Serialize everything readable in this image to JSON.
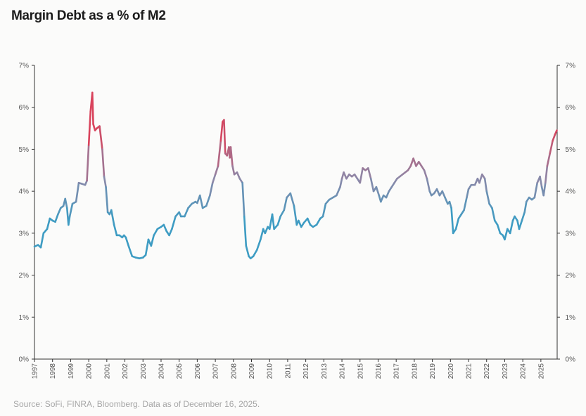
{
  "title": "Margin Debt as a % of M2",
  "source": "Source: SoFi, FINRA, Bloomberg. Data as of December 16, 2025.",
  "colors": {
    "low": "#3e9cc3",
    "mid": "#8c88a8",
    "high": "#d9435c",
    "axis": "#333333"
  },
  "chart_data": {
    "type": "line",
    "title": "Margin Debt as a % of M2",
    "xlabel": "",
    "ylabel": "",
    "xlim": [
      1997.0,
      2025.9
    ],
    "ylim": [
      0,
      7
    ],
    "y_ticks": [
      "0%",
      "1%",
      "2%",
      "3%",
      "4%",
      "5%",
      "6%",
      "7%"
    ],
    "x_ticks": [
      "1997",
      "1998",
      "1999",
      "2000",
      "2001",
      "2002",
      "2003",
      "2004",
      "2005",
      "2006",
      "2007",
      "2008",
      "2009",
      "2010",
      "2011",
      "2012",
      "2013",
      "2014",
      "2015",
      "2016",
      "2017",
      "2018",
      "2019",
      "2020",
      "2021",
      "2022",
      "2023",
      "2024",
      "2025"
    ],
    "grid": false,
    "legend": "none",
    "color_encoding": "line color shifts from blue (low) to red (high) with value",
    "series": [
      {
        "points": [
          [
            1997.0,
            2.68
          ],
          [
            1997.2,
            2.72
          ],
          [
            1997.35,
            2.66
          ],
          [
            1997.5,
            3.0
          ],
          [
            1997.7,
            3.1
          ],
          [
            1997.85,
            3.35
          ],
          [
            1998.0,
            3.3
          ],
          [
            1998.15,
            3.27
          ],
          [
            1998.3,
            3.45
          ],
          [
            1998.45,
            3.6
          ],
          [
            1998.6,
            3.65
          ],
          [
            1998.7,
            3.82
          ],
          [
            1998.8,
            3.6
          ],
          [
            1998.88,
            3.2
          ],
          [
            1998.95,
            3.4
          ],
          [
            1999.1,
            3.7
          ],
          [
            1999.3,
            3.75
          ],
          [
            1999.45,
            4.2
          ],
          [
            1999.6,
            4.18
          ],
          [
            1999.8,
            4.15
          ],
          [
            1999.9,
            4.25
          ],
          [
            2000.0,
            5.1
          ],
          [
            2000.1,
            5.9
          ],
          [
            2000.2,
            6.35
          ],
          [
            2000.25,
            5.6
          ],
          [
            2000.35,
            5.45
          ],
          [
            2000.45,
            5.5
          ],
          [
            2000.6,
            5.55
          ],
          [
            2000.75,
            5.0
          ],
          [
            2000.85,
            4.35
          ],
          [
            2000.95,
            4.1
          ],
          [
            2001.05,
            3.5
          ],
          [
            2001.15,
            3.45
          ],
          [
            2001.25,
            3.55
          ],
          [
            2001.4,
            3.2
          ],
          [
            2001.55,
            2.95
          ],
          [
            2001.7,
            2.95
          ],
          [
            2001.85,
            2.9
          ],
          [
            2001.95,
            2.95
          ],
          [
            2002.05,
            2.9
          ],
          [
            2002.2,
            2.7
          ],
          [
            2002.4,
            2.45
          ],
          [
            2002.6,
            2.42
          ],
          [
            2002.8,
            2.4
          ],
          [
            2003.0,
            2.42
          ],
          [
            2003.15,
            2.48
          ],
          [
            2003.3,
            2.85
          ],
          [
            2003.45,
            2.7
          ],
          [
            2003.6,
            2.95
          ],
          [
            2003.8,
            3.1
          ],
          [
            2004.0,
            3.15
          ],
          [
            2004.15,
            3.2
          ],
          [
            2004.3,
            3.05
          ],
          [
            2004.45,
            2.95
          ],
          [
            2004.6,
            3.1
          ],
          [
            2004.8,
            3.4
          ],
          [
            2005.0,
            3.5
          ],
          [
            2005.1,
            3.4
          ],
          [
            2005.3,
            3.4
          ],
          [
            2005.5,
            3.6
          ],
          [
            2005.7,
            3.7
          ],
          [
            2005.9,
            3.75
          ],
          [
            2006.0,
            3.72
          ],
          [
            2006.15,
            3.9
          ],
          [
            2006.3,
            3.6
          ],
          [
            2006.5,
            3.65
          ],
          [
            2006.7,
            3.9
          ],
          [
            2006.85,
            4.2
          ],
          [
            2007.0,
            4.4
          ],
          [
            2007.15,
            4.6
          ],
          [
            2007.3,
            5.2
          ],
          [
            2007.4,
            5.65
          ],
          [
            2007.48,
            5.7
          ],
          [
            2007.55,
            4.9
          ],
          [
            2007.65,
            4.85
          ],
          [
            2007.75,
            5.05
          ],
          [
            2007.8,
            4.8
          ],
          [
            2007.85,
            5.05
          ],
          [
            2007.95,
            4.6
          ],
          [
            2008.05,
            4.4
          ],
          [
            2008.2,
            4.45
          ],
          [
            2008.35,
            4.3
          ],
          [
            2008.5,
            4.2
          ],
          [
            2008.6,
            3.4
          ],
          [
            2008.7,
            2.7
          ],
          [
            2008.85,
            2.45
          ],
          [
            2008.95,
            2.4
          ],
          [
            2009.1,
            2.45
          ],
          [
            2009.3,
            2.6
          ],
          [
            2009.5,
            2.85
          ],
          [
            2009.65,
            3.1
          ],
          [
            2009.75,
            3.0
          ],
          [
            2009.9,
            3.15
          ],
          [
            2010.0,
            3.1
          ],
          [
            2010.15,
            3.45
          ],
          [
            2010.25,
            3.1
          ],
          [
            2010.45,
            3.2
          ],
          [
            2010.6,
            3.4
          ],
          [
            2010.8,
            3.55
          ],
          [
            2010.95,
            3.85
          ],
          [
            2011.15,
            3.95
          ],
          [
            2011.35,
            3.65
          ],
          [
            2011.5,
            3.2
          ],
          [
            2011.6,
            3.3
          ],
          [
            2011.75,
            3.15
          ],
          [
            2011.9,
            3.25
          ],
          [
            2012.1,
            3.35
          ],
          [
            2012.25,
            3.2
          ],
          [
            2012.4,
            3.15
          ],
          [
            2012.6,
            3.2
          ],
          [
            2012.8,
            3.35
          ],
          [
            2012.95,
            3.4
          ],
          [
            2013.1,
            3.7
          ],
          [
            2013.3,
            3.8
          ],
          [
            2013.5,
            3.85
          ],
          [
            2013.7,
            3.9
          ],
          [
            2013.9,
            4.1
          ],
          [
            2014.0,
            4.3
          ],
          [
            2014.1,
            4.45
          ],
          [
            2014.25,
            4.3
          ],
          [
            2014.4,
            4.4
          ],
          [
            2014.55,
            4.35
          ],
          [
            2014.7,
            4.4
          ],
          [
            2014.85,
            4.3
          ],
          [
            2015.0,
            4.2
          ],
          [
            2015.15,
            4.55
          ],
          [
            2015.3,
            4.5
          ],
          [
            2015.45,
            4.55
          ],
          [
            2015.6,
            4.3
          ],
          [
            2015.75,
            4.0
          ],
          [
            2015.9,
            4.1
          ],
          [
            2016.05,
            3.9
          ],
          [
            2016.15,
            3.75
          ],
          [
            2016.3,
            3.9
          ],
          [
            2016.45,
            3.85
          ],
          [
            2016.6,
            4.0
          ],
          [
            2016.75,
            4.1
          ],
          [
            2016.9,
            4.2
          ],
          [
            2017.05,
            4.3
          ],
          [
            2017.2,
            4.35
          ],
          [
            2017.35,
            4.4
          ],
          [
            2017.5,
            4.45
          ],
          [
            2017.65,
            4.5
          ],
          [
            2017.8,
            4.6
          ],
          [
            2017.95,
            4.78
          ],
          [
            2018.1,
            4.6
          ],
          [
            2018.25,
            4.7
          ],
          [
            2018.4,
            4.6
          ],
          [
            2018.55,
            4.5
          ],
          [
            2018.7,
            4.3
          ],
          [
            2018.85,
            4.0
          ],
          [
            2018.95,
            3.9
          ],
          [
            2019.1,
            3.95
          ],
          [
            2019.25,
            4.05
          ],
          [
            2019.4,
            3.9
          ],
          [
            2019.55,
            4.0
          ],
          [
            2019.7,
            3.85
          ],
          [
            2019.85,
            3.7
          ],
          [
            2019.95,
            3.75
          ],
          [
            2020.05,
            3.6
          ],
          [
            2020.15,
            3.0
          ],
          [
            2020.3,
            3.1
          ],
          [
            2020.45,
            3.35
          ],
          [
            2020.6,
            3.45
          ],
          [
            2020.75,
            3.55
          ],
          [
            2020.9,
            3.85
          ],
          [
            2021.0,
            4.05
          ],
          [
            2021.15,
            4.15
          ],
          [
            2021.35,
            4.15
          ],
          [
            2021.5,
            4.3
          ],
          [
            2021.6,
            4.2
          ],
          [
            2021.75,
            4.4
          ],
          [
            2021.9,
            4.3
          ],
          [
            2022.0,
            4.0
          ],
          [
            2022.15,
            3.7
          ],
          [
            2022.3,
            3.6
          ],
          [
            2022.45,
            3.3
          ],
          [
            2022.6,
            3.2
          ],
          [
            2022.75,
            3.0
          ],
          [
            2022.9,
            2.95
          ],
          [
            2023.0,
            2.85
          ],
          [
            2023.15,
            3.1
          ],
          [
            2023.3,
            3.0
          ],
          [
            2023.45,
            3.3
          ],
          [
            2023.55,
            3.4
          ],
          [
            2023.7,
            3.3
          ],
          [
            2023.8,
            3.1
          ],
          [
            2023.95,
            3.3
          ],
          [
            2024.1,
            3.5
          ],
          [
            2024.2,
            3.75
          ],
          [
            2024.35,
            3.85
          ],
          [
            2024.5,
            3.8
          ],
          [
            2024.65,
            3.85
          ],
          [
            2024.8,
            4.2
          ],
          [
            2024.95,
            4.35
          ],
          [
            2025.05,
            4.1
          ],
          [
            2025.15,
            3.9
          ],
          [
            2025.25,
            4.2
          ],
          [
            2025.35,
            4.6
          ],
          [
            2025.5,
            4.9
          ],
          [
            2025.65,
            5.2
          ],
          [
            2025.78,
            5.35
          ],
          [
            2025.88,
            5.45
          ]
        ]
      }
    ]
  }
}
